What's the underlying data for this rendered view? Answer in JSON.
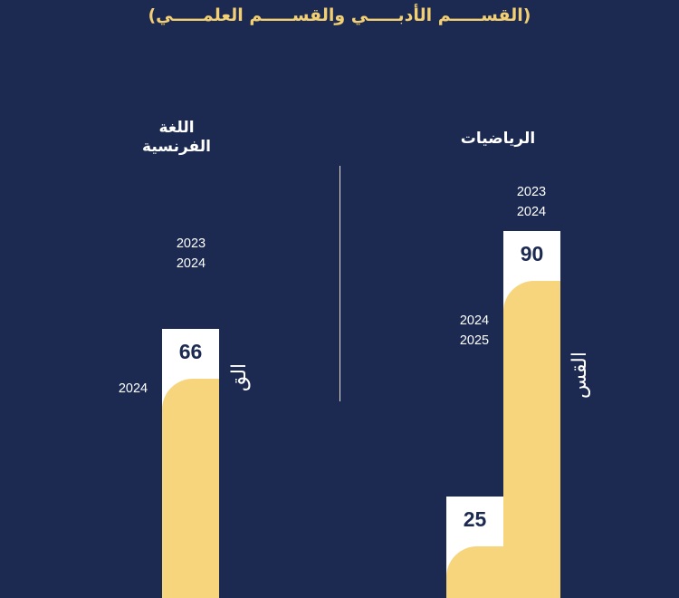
{
  "header": {
    "subtitle": "(القســـــم الأدبـــــي والقســـــم العلمـــــي)"
  },
  "colors": {
    "background": "#1c2a52",
    "accent": "#f3cf74",
    "bar_fill": "#f7d57d",
    "bar_bg": "#ffffff"
  },
  "chart_data": [
    {
      "type": "bar",
      "title": "الرياضيات",
      "categories": [
        "2023\n2024",
        "2024\n2025"
      ],
      "category_lines": [
        [
          "2023",
          "2024"
        ],
        [
          "2024",
          "2025"
        ]
      ],
      "values": [
        90,
        25
      ],
      "side_label": "القس"
    },
    {
      "type": "bar",
      "title_lines": [
        "اللغة",
        "الفرنسية"
      ],
      "categories": [
        "2023\n2024",
        "2024"
      ],
      "category_lines": [
        [
          "2023",
          "2024"
        ],
        [
          "2024"
        ]
      ],
      "values": [
        66,
        null
      ],
      "side_label": "الق"
    }
  ]
}
